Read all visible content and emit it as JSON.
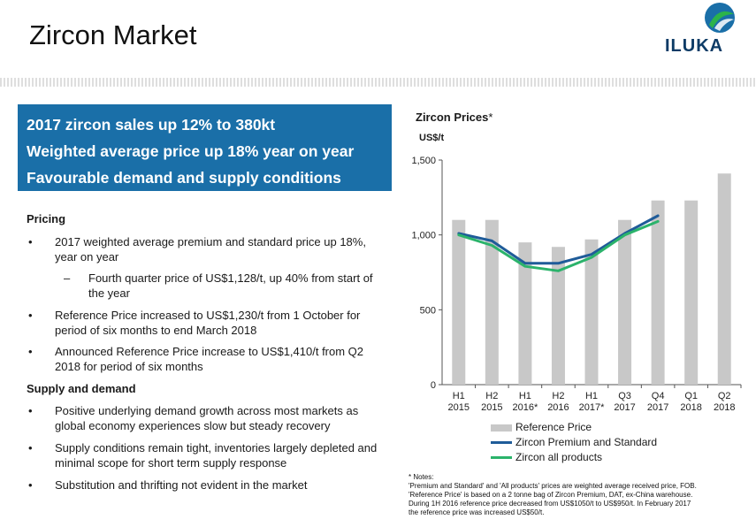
{
  "header": {
    "title": "Zircon Market",
    "logo_text": "ILUKA",
    "logo_colors": {
      "circle": "#1a6fa8",
      "swoosh": "#2bb34a"
    }
  },
  "highlights": [
    "2017 zircon sales up 12% to 380kt",
    "Weighted average price up 18% year on year",
    "Favourable demand and supply conditions"
  ],
  "pricing": {
    "heading": "Pricing",
    "bullet1": "2017 weighted average premium and standard price up 18%, year on year",
    "sub1": "Fourth quarter price of US$1,128/t, up 40% from start of the year",
    "bullet2": "Reference Price increased to US$1,230/t from 1 October for period of six months to end March 2018",
    "bullet3": "Announced Reference Price increase to US$1,410/t from Q2 2018 for period of six months"
  },
  "supply": {
    "heading": "Supply and demand",
    "bullet1": "Positive underlying demand growth across most markets as global economy experiences slow but steady recovery",
    "bullet2": "Supply conditions remain tight, inventories largely depleted and minimal scope for short term supply response",
    "bullet3": "Substitution and thrifting not evident in the market"
  },
  "symbols": {
    "bullet": "•",
    "dash": "–"
  },
  "chart_data": {
    "type": "bar",
    "title": "Zircon Prices",
    "title_mark": "*",
    "ylabel": "US$/t",
    "ylim": [
      0,
      1500
    ],
    "yticks": [
      "0",
      "500",
      "1,000",
      "1,500"
    ],
    "categories": [
      [
        "H1",
        "2015"
      ],
      [
        "H2",
        "2015"
      ],
      [
        "H1",
        "2016*"
      ],
      [
        "H2",
        "2016"
      ],
      [
        "H1",
        "2017*"
      ],
      [
        "Q3",
        "2017"
      ],
      [
        "Q4",
        "2017"
      ],
      [
        "Q1",
        "2018"
      ],
      [
        "Q2",
        "2018"
      ]
    ],
    "series": [
      {
        "name": "Reference Price",
        "kind": "bar",
        "color": "#c8c8c8",
        "values": [
          1100,
          1100,
          950,
          920,
          970,
          1100,
          1230,
          1230,
          1410
        ]
      },
      {
        "name": "Zircon Premium and Standard",
        "kind": "line",
        "color": "#1f5c99",
        "values": [
          1010,
          960,
          810,
          810,
          870,
          1010,
          1128,
          null,
          null
        ]
      },
      {
        "name": "Zircon all products",
        "kind": "line",
        "color": "#2bb36b",
        "values": [
          1000,
          930,
          790,
          760,
          850,
          1000,
          1090,
          null,
          null
        ]
      }
    ],
    "grid": false,
    "legend": "bottom"
  },
  "notes": {
    "label": "* Notes:",
    "line1": "'Premium and Standard' and 'All products' prices are weighted average received price, FOB.",
    "line2": "'Reference Price' is based on a 2 tonne bag of Zircon Premium, DAT, ex-China warehouse.",
    "line3": "During 1H 2016 reference price decreased from US$1050/t to US$950/t. In February 2017",
    "line4": "the reference price was increased US$50/t."
  }
}
